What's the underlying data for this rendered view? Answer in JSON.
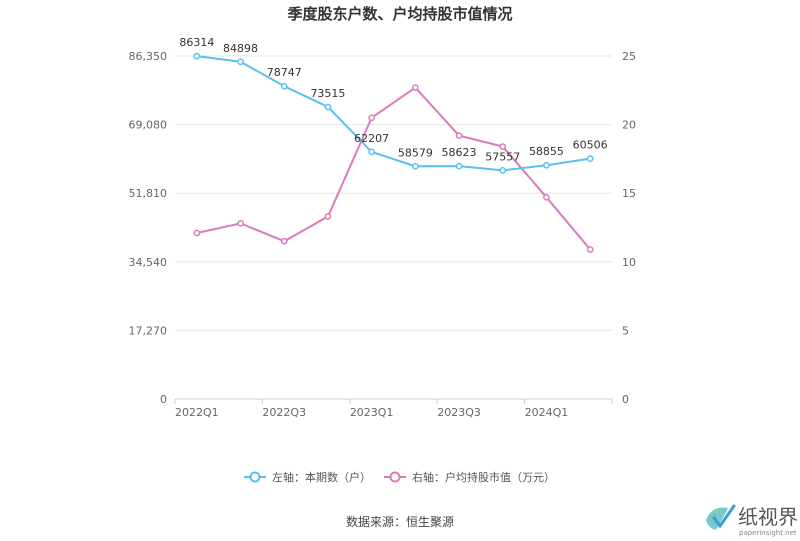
{
  "chart_data": {
    "type": "line",
    "title": "季度股东户数、户均持股市值情况",
    "categories": [
      "2022Q1",
      "2022Q2",
      "2022Q3",
      "2022Q4",
      "2023Q1",
      "2023Q2",
      "2023Q3",
      "2023Q4",
      "2024Q1",
      "2024Q2"
    ],
    "x_tick_labels": [
      "2022Q1",
      "2022Q3",
      "2023Q1",
      "2023Q3",
      "2024Q1"
    ],
    "y_left": {
      "ticks": [
        "0",
        "17,270",
        "34,540",
        "51,810",
        "69,080",
        "86,350"
      ],
      "range": [
        0,
        86350
      ]
    },
    "y_right": {
      "ticks": [
        "0",
        "5",
        "10",
        "15",
        "20",
        "25"
      ],
      "range": [
        0,
        25
      ]
    },
    "series": [
      {
        "name": "左轴：本期数（户）",
        "axis": "left",
        "color": "#5bc0f0",
        "values": [
          86314,
          84898,
          78747,
          73515,
          62207,
          58579,
          58623,
          57557,
          58855,
          60506
        ],
        "labels": [
          "86314",
          "84898",
          "78747",
          "73515",
          "62207",
          "58579",
          "58623",
          "57557",
          "58855",
          "60506"
        ]
      },
      {
        "name": "右轴：户均持股市值（万元）",
        "axis": "right",
        "color": "#d97bbd",
        "values": [
          12.1,
          12.8,
          11.5,
          13.3,
          20.5,
          22.7,
          19.2,
          18.4,
          14.7,
          10.9
        ]
      }
    ],
    "legend_position": "bottom",
    "grid": true
  },
  "source": "数据来源：恒生聚源",
  "watermark": {
    "name": "纸视界",
    "url": "paperinsight.net"
  }
}
